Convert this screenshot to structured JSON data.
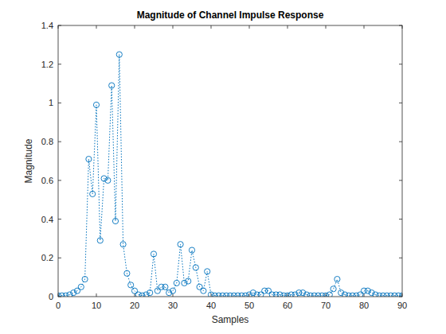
{
  "chart_data": {
    "type": "line",
    "title": "Magnitude of Channel Impulse Response",
    "x_label": "Samples",
    "y_label": "Magnitude",
    "x": [
      0,
      1,
      2,
      3,
      4,
      5,
      6,
      7,
      8,
      9,
      10,
      11,
      12,
      13,
      14,
      15,
      16,
      17,
      18,
      19,
      20,
      21,
      22,
      23,
      24,
      25,
      26,
      27,
      28,
      29,
      30,
      31,
      32,
      33,
      34,
      35,
      36,
      37,
      38,
      39,
      40,
      41,
      42,
      43,
      44,
      45,
      46,
      47,
      48,
      49,
      50,
      51,
      52,
      53,
      54,
      55,
      56,
      57,
      58,
      59,
      60,
      61,
      62,
      63,
      64,
      65,
      66,
      67,
      68,
      69,
      70,
      71,
      72,
      73,
      74,
      75,
      76,
      77,
      78,
      79,
      80,
      81,
      82,
      83,
      84,
      85,
      86,
      87,
      88,
      89,
      90
    ],
    "values": [
      0.005,
      0.005,
      0.005,
      0.01,
      0.02,
      0.03,
      0.05,
      0.09,
      0.71,
      0.53,
      0.99,
      0.29,
      0.61,
      0.6,
      1.09,
      0.39,
      1.25,
      0.27,
      0.12,
      0.06,
      0.03,
      0.01,
      0.005,
      0.01,
      0.02,
      0.22,
      0.03,
      0.05,
      0.05,
      0.02,
      0.03,
      0.07,
      0.27,
      0.07,
      0.08,
      0.24,
      0.15,
      0.05,
      0.03,
      0.13,
      0.01,
      0.005,
      0.005,
      0.005,
      0.005,
      0.005,
      0.005,
      0.005,
      0.005,
      0.005,
      0.01,
      0.02,
      0.01,
      0.01,
      0.03,
      0.03,
      0.01,
      0.01,
      0.01,
      0.005,
      0.005,
      0.01,
      0.01,
      0.02,
      0.02,
      0.01,
      0.005,
      0.005,
      0.005,
      0.005,
      0.005,
      0.01,
      0.04,
      0.09,
      0.02,
      0.01,
      0.005,
      0.005,
      0.005,
      0.01,
      0.03,
      0.03,
      0.02,
      0.01,
      0.005,
      0.005,
      0.005,
      0.005,
      0.005,
      0.005,
      0.005
    ],
    "color": "#0072bd",
    "marker": "circle",
    "line_style": "dotted",
    "xlim": [
      0,
      90
    ],
    "xticks": [
      0,
      10,
      20,
      30,
      40,
      50,
      60,
      70,
      80,
      90
    ],
    "ylim": [
      0,
      1.4
    ],
    "yticks": [
      0,
      0.2,
      0.4,
      0.6,
      0.8,
      1,
      1.2,
      1.4
    ],
    "grid": false
  }
}
